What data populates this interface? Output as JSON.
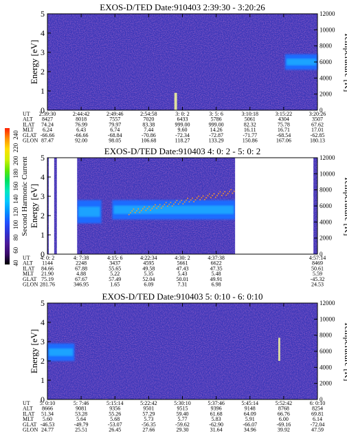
{
  "colorbar": {
    "label": "Second Harmonic Current",
    "ticks": [
      "40",
      "60",
      "80",
      "100",
      "120",
      "140",
      "160",
      "180",
      "200",
      "220",
      "240"
    ],
    "colors": [
      "#000000",
      "#3a0a6a",
      "#4b1a9a",
      "#3030d0",
      "#2050ff",
      "#0090ff",
      "#00c8ff",
      "#00e8c0",
      "#00e060",
      "#60e800",
      "#d0f000",
      "#ffe000",
      "#ff9000",
      "#ff2000"
    ]
  },
  "colors": {
    "background": "#3a36b8",
    "noise": "#7a2aa0",
    "band": "#1aa6ff",
    "band_core": "#2fd0f0",
    "band_mid": "#1e6cff",
    "trace": "#ff9a20",
    "gap": "#ffffff"
  },
  "chart_data": [
    {
      "type": "heatmap",
      "title": "EXOS-D/TED   Date:910403   2:39:30 - 3:20:26",
      "ylabel": "Energy [eV]",
      "ylabel2": "Temperature [K]",
      "ylim": [
        0,
        5
      ],
      "yticks": [
        "0",
        "1",
        "2",
        "3",
        "4",
        "5"
      ],
      "y2lim": [
        0,
        12000
      ],
      "y2ticks": [
        "0",
        "2000",
        "4000",
        "6000",
        "8000",
        "10000",
        "12000"
      ],
      "row_labels": [
        "UT",
        "ALT",
        "ILAT",
        "MLT",
        "GLAT",
        "GLON"
      ],
      "columns": [
        [
          "2:39:30",
          "8427",
          "74.24",
          "6.24",
          "-66.66",
          "87.47"
        ],
        [
          "2:44:42",
          "8018",
          "76.99",
          "6.43",
          "-66.66",
          "92.00"
        ],
        [
          "2:49:46",
          "7557",
          "79.97",
          "6.74",
          "-68.84",
          "98.05"
        ],
        [
          "2:54:58",
          "7020",
          "83.38",
          "7.44",
          "-70.86",
          "106.68"
        ],
        [
          "3: 0: 2",
          "6433",
          "999.00",
          "9.60",
          "-72.34",
          "118.27"
        ],
        [
          "3: 5: 6",
          "5786",
          "999.00",
          "14.26",
          "-72.87",
          "133.29"
        ],
        [
          "3:10:18",
          "5061",
          "82.32",
          "16.11",
          "-71.77",
          "150.86"
        ],
        [
          "3:15:22",
          "4304",
          "75.78",
          "16.71",
          "-68.54",
          "167.06"
        ],
        [
          "3:20:26",
          "3507",
          "67.62",
          "17.01",
          "-62.85",
          "180.13"
        ]
      ],
      "features": [
        {
          "kind": "band",
          "t": [
            0.88,
            1.0
          ],
          "e": [
            2.1,
            2.9
          ]
        },
        {
          "kind": "spike",
          "t": [
            0.47,
            0.48
          ],
          "e": [
            0.0,
            0.9
          ]
        }
      ]
    },
    {
      "type": "heatmap",
      "title": "EXOS-D/TED   Date:910403   4: 0: 2 - 5: 0: 2",
      "ylabel": "Energy [eV]",
      "ylabel2": "Temperature [K]",
      "ylim": [
        0,
        5
      ],
      "yticks": [
        "0",
        "1",
        "2",
        "3",
        "4",
        "5"
      ],
      "y2lim": [
        0,
        12000
      ],
      "y2ticks": [
        "0",
        "2000",
        "4000",
        "6000",
        "8000",
        "10000",
        "12000"
      ],
      "row_labels": [
        "UT",
        "ALT",
        "ILAT",
        "MLT",
        "GLAT",
        "GLON"
      ],
      "columns": [
        [
          "4: 0: 2",
          "1144",
          "84.66",
          "21.90",
          "75.19",
          "281.76"
        ],
        [
          "4: 7:38",
          "2248",
          "67.88",
          "4.88",
          "67.67",
          "346.95"
        ],
        [
          "4:15: 6",
          "3437",
          "55.65",
          "5.22",
          "57.49",
          "1.65"
        ],
        [
          "4:22:34",
          "4595",
          "49.58",
          "5.35",
          "52.04",
          "6.09"
        ],
        [
          "4:30: 2",
          "5661",
          "47.43",
          "5.43",
          "50.01",
          "7.31"
        ],
        [
          "4:37:38",
          "6622",
          "47.35",
          "5.48",
          "49.91",
          "6.98"
        ],
        [
          "",
          "",
          "",
          "",
          "",
          ""
        ],
        [
          "",
          "",
          "",
          "",
          "",
          ""
        ],
        [
          "4:57:14",
          "8469",
          "50.61",
          "5.59",
          "-45.32",
          "24.53"
        ]
      ],
      "gaps": [
        [
          0.005,
          0.025
        ],
        [
          0.035,
          0.11
        ],
        [
          0.695,
          0.985
        ]
      ],
      "features": [
        {
          "kind": "band",
          "t": [
            0.11,
            0.2
          ],
          "e": [
            1.6,
            2.8
          ]
        },
        {
          "kind": "band",
          "t": [
            0.24,
            0.695
          ],
          "e": [
            1.8,
            2.8
          ]
        },
        {
          "kind": "trace",
          "t": [
            0.3,
            0.695
          ],
          "e": [
            2.2,
            3.3
          ]
        }
      ]
    },
    {
      "type": "heatmap",
      "title": "EXOS-D/TED   Date:910403   5: 0:10 - 6: 0:10",
      "ylabel": "Energy [eV]",
      "ylabel2": "Temperature [K]",
      "ylim": [
        0,
        5
      ],
      "yticks": [
        "0",
        "1",
        "2",
        "3",
        "4",
        "5"
      ],
      "y2lim": [
        0,
        12000
      ],
      "y2ticks": [
        "0",
        "2000",
        "4000",
        "6000",
        "8000",
        "10000",
        "12000"
      ],
      "row_labels": [
        "UT",
        "ALT",
        "ILAT",
        "MLT",
        "GLAT",
        "GLON"
      ],
      "columns": [
        [
          "5: 0:10",
          "8666",
          "51.34",
          "5.60",
          "-46.53",
          "24.77"
        ],
        [
          "5: 7:46",
          "9081",
          "53.28",
          "5.64",
          "-49.79",
          "25.51"
        ],
        [
          "5:15:14",
          "9356",
          "55.26",
          "5.68",
          "-53.07",
          "26.45"
        ],
        [
          "5:22:42",
          "9501",
          "57.29",
          "5.73",
          "-56.35",
          "27.66"
        ],
        [
          "5:30:10",
          "9515",
          "59.40",
          "5.77",
          "-59.62",
          "29.30"
        ],
        [
          "5:37:46",
          "9396",
          "61.68",
          "5.83",
          "-62.90",
          "31.64"
        ],
        [
          "5:45:14",
          "9148",
          "64.09",
          "5.91",
          "-66.07",
          "34.96"
        ],
        [
          "5:52:42",
          "8768",
          "66.76",
          "6.00",
          "-69.16",
          "39.92"
        ],
        [
          "6: 0:10",
          "8254",
          "69.81",
          "6.14",
          "-72.04",
          "47.59"
        ]
      ],
      "features": [
        {
          "kind": "band",
          "t": [
            0.0,
            0.1
          ],
          "e": [
            2.0,
            2.9
          ]
        },
        {
          "kind": "spike",
          "t": [
            0.855,
            0.862
          ],
          "e": [
            2.0,
            3.2
          ]
        }
      ]
    }
  ]
}
